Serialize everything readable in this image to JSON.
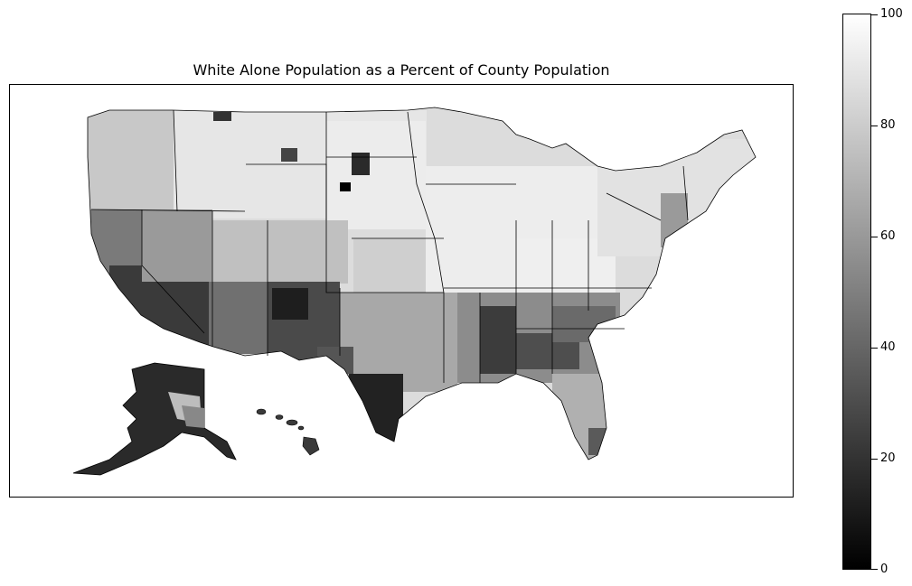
{
  "title": "White Alone Population as a Percent of County Population",
  "colorbar": {
    "min": 0,
    "max": 100,
    "ticks": [
      "0",
      "20",
      "40",
      "60",
      "80",
      "100"
    ],
    "low_color": "#000000",
    "high_color": "#ffffff"
  },
  "map": {
    "type": "choropleth",
    "region": "United States counties (contiguous US with Alaska and Hawaii insets)",
    "colormap": "grayscale",
    "low_areas": [
      "South Texas",
      "Mississippi Delta",
      "Black Belt of Alabama and Georgia",
      "Southern California",
      "Navajo Nation in Arizona and New Mexico",
      "Western Alaska",
      "Southern South Dakota reservations"
    ],
    "high_areas": [
      "Northern Great Plains",
      "Midwest",
      "Appalachia",
      "Northern New England"
    ]
  }
}
